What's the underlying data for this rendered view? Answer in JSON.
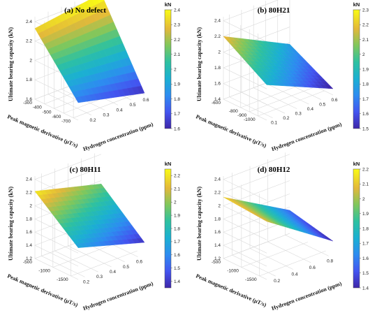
{
  "chart_data": [
    {
      "type": "surface",
      "title": "(a) No defect",
      "xlabel": "Hydrogen concentration (ppm)",
      "ylabel": "Peak magnetic derivative (μT/s)",
      "zlabel": "Ultimate bearing capacity (kN)",
      "xticks": [
        0.2,
        0.3,
        0.4,
        0.5,
        0.6
      ],
      "yticks": [
        -300,
        -400,
        -500,
        -600,
        -700
      ],
      "zticks": [
        1.6,
        1.8,
        2,
        2.2,
        2.4
      ],
      "xlim": [
        0.1,
        0.6
      ],
      "ylim": [
        -750,
        -300
      ],
      "zlim": [
        1.6,
        2.45
      ],
      "corners": {
        "x_low_y_high": 2.33,
        "x_high_y_high": 2.43,
        "x_low_y_low": 1.78,
        "x_high_y_low": 1.62
      },
      "colorbar": {
        "unit": "kN",
        "min": 1.6,
        "max": 2.4,
        "ticks": [
          1.6,
          1.7,
          1.8,
          1.9,
          2,
          2.1,
          2.2,
          2.3,
          2.4
        ]
      }
    },
    {
      "type": "surface",
      "title": "(b) 80H21",
      "xlabel": "Hydrogen concentration (ppm)",
      "ylabel": "Peak magnetic derivative (μT/s)",
      "zlabel": "Ultimate bearing capacity (kN)",
      "xticks": [
        0.1,
        0.2,
        0.3,
        0.4,
        0.5,
        0.6
      ],
      "yticks": [
        -600,
        -800,
        -900,
        -1000
      ],
      "zticks": [
        1.4,
        1.6,
        1.8,
        2,
        2.2,
        2.4
      ],
      "xlim": [
        0.05,
        0.6
      ],
      "ylim": [
        -1100,
        -600
      ],
      "zlim": [
        1.4,
        2.45
      ],
      "corners": {
        "x_low_y_high": 2.2,
        "x_high_y_high": 1.78,
        "x_low_y_low": 1.85,
        "x_high_y_low": 1.48
      },
      "colorbar": {
        "unit": "kN",
        "min": 1.5,
        "max": 2.3,
        "ticks": [
          1.5,
          1.6,
          1.7,
          1.8,
          1.9,
          2,
          2.1,
          2.2,
          2.3
        ]
      }
    },
    {
      "type": "surface",
      "title": "(c) 80H11",
      "xlabel": "Hydrogen concentration (ppm)",
      "ylabel": "Peak magnetic derivative (μT/s)",
      "zlabel": "Ultimate bearing capacity (kN)",
      "xticks": [
        0.2,
        0.3,
        0.4,
        0.5,
        0.6
      ],
      "yticks": [
        -500,
        -1000,
        -1500
      ],
      "zticks": [
        1.2,
        1.4,
        1.6,
        1.8,
        2,
        2.2,
        2.4
      ],
      "xlim": [
        0.15,
        0.65
      ],
      "ylim": [
        -1700,
        -500
      ],
      "zlim": [
        1.2,
        2.45
      ],
      "corners": {
        "x_low_y_high": 2.22,
        "x_high_y_high": 1.95,
        "x_low_y_low": 1.68,
        "x_high_y_low": 1.38
      },
      "colorbar": {
        "unit": "kN",
        "min": 1.35,
        "max": 2.25,
        "ticks": [
          1.4,
          1.5,
          1.6,
          1.7,
          1.8,
          1.9,
          2,
          2.1,
          2.2
        ]
      }
    },
    {
      "type": "surface",
      "title": "(d) 80H12",
      "xlabel": "Hydrogen concentration (ppm)",
      "ylabel": "Peak magnetic derivative (μT/s)",
      "zlabel": "Ultimate bearing capacity (kN)",
      "xticks": [
        0.2,
        0.4,
        0.6,
        0.8
      ],
      "yticks": [
        -500,
        -1000,
        -1500
      ],
      "zticks": [
        1.2,
        1.4,
        1.6,
        1.8,
        2,
        2.2,
        2.4
      ],
      "xlim": [
        0.1,
        0.85
      ],
      "ylim": [
        -1700,
        -500
      ],
      "zlim": [
        1.2,
        2.45
      ],
      "corners": {
        "x_low_y_high": 2.13,
        "x_high_y_high": 1.55,
        "x_low_y_low": 2.08,
        "x_high_y_low": 1.4
      },
      "colorbar": {
        "unit": "kN",
        "min": 1.4,
        "max": 2.2,
        "ticks": [
          1.4,
          1.5,
          1.6,
          1.7,
          1.8,
          1.9,
          2,
          2.1,
          2.2
        ]
      }
    }
  ]
}
